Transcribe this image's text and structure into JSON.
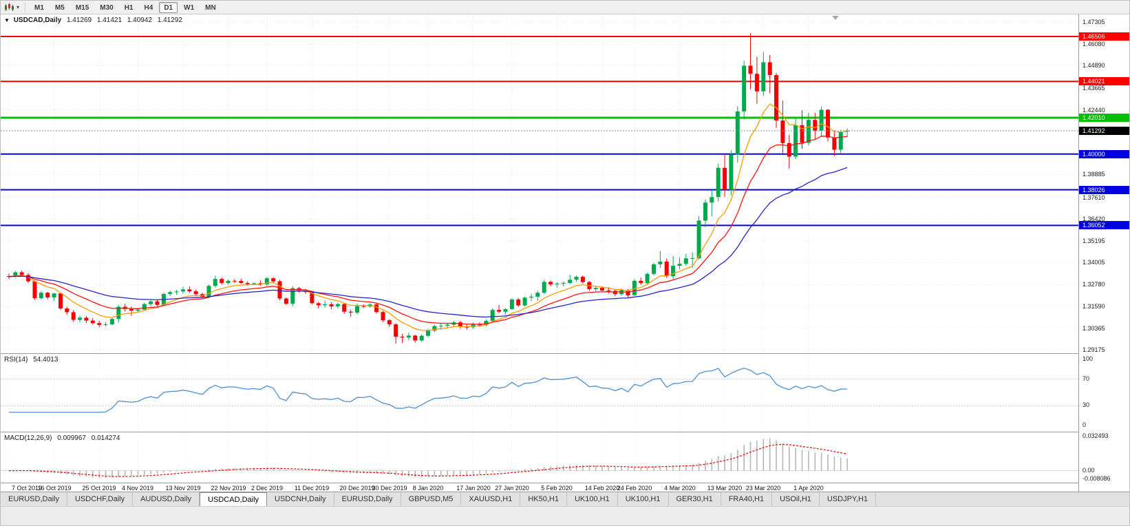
{
  "toolbar": {
    "timeframes": [
      "M1",
      "M5",
      "M15",
      "M30",
      "H1",
      "H4",
      "D1",
      "W1",
      "MN"
    ],
    "active_timeframe": "D1"
  },
  "chart": {
    "header": {
      "symbol": "USDCAD,Daily",
      "open": "1.41269",
      "high": "1.41421",
      "low": "1.40942",
      "close": "1.41292"
    },
    "y_axis_ticks": [
      "1.47305",
      "1.46080",
      "1.44890",
      "1.43665",
      "1.42440",
      "1.38885",
      "1.37610",
      "1.36420",
      "1.35195",
      "1.34005",
      "1.32780",
      "1.31590",
      "1.30365",
      "1.29175"
    ],
    "price_lines": [
      {
        "value": 1.46506,
        "label": "1.46506",
        "color": "#ff0000",
        "width": 2
      },
      {
        "value": 1.44021,
        "label": "1.44021",
        "color": "#ff0000",
        "width": 2
      },
      {
        "value": 1.4201,
        "label": "1.42010",
        "color": "#00c000",
        "width": 3
      },
      {
        "value": 1.4,
        "label": "1.40000",
        "color": "#0000e0",
        "width": 2
      },
      {
        "value": 1.38026,
        "label": "1.38026",
        "color": "#0000e0",
        "width": 2
      },
      {
        "value": 1.36052,
        "label": "1.36052",
        "color": "#0000e0",
        "width": 2
      }
    ],
    "current_price": {
      "value": 1.41292,
      "label": "1.41292"
    }
  },
  "rsi": {
    "label": "RSI(14)",
    "value": "54.4013",
    "period": 14,
    "levels": [
      "100",
      "70",
      "30",
      "0"
    ],
    "color": "#4a8fd3"
  },
  "macd": {
    "label": "MACD(12,26,9)",
    "value1": "0.009967",
    "value2": "0.014274",
    "levels": [
      "0.032493",
      "0.00",
      "-0.008086"
    ],
    "range": [
      -0.008086,
      0.032493
    ],
    "histogram_color": "#b6b6b6",
    "signal_color": "#e00000"
  },
  "tabs": [
    "EURUSD,Daily",
    "USDCHF,Daily",
    "AUDUSD,Daily",
    "USDCAD,Daily",
    "USDCNH,Daily",
    "EURUSD,Daily",
    "GBPUSD,M5",
    "XAUUSD,H1",
    "HK50,H1",
    "UK100,H1",
    "UK100,H1",
    "GER30,H1",
    "FRA40,H1",
    "USOil,H1",
    "USDJPY,H1"
  ],
  "active_tab_index": 3,
  "chart_data": {
    "type": "candlestick",
    "title": "USDCAD,Daily",
    "ylim": [
      1.29175,
      1.47305
    ],
    "x_labels": [
      "7 Oct 2019",
      "16 Oct 2019",
      "25 Oct 2019",
      "4 Nov 2019",
      "13 Nov 2019",
      "22 Nov 2019",
      "2 Dec 2019",
      "11 Dec 2019",
      "20 Dec 2019",
      "30 Dec 2019",
      "8 Jan 2020",
      "17 Jan 2020",
      "27 Jan 2020",
      "5 Feb 2020",
      "14 Feb 2020",
      "24 Feb 2020",
      "4 Mar 2020",
      "13 Mar 2020",
      "23 Mar 2020",
      "1 Apr 2020"
    ],
    "x_label_indices": [
      0,
      7,
      14,
      20,
      27,
      34,
      40,
      47,
      54,
      59,
      65,
      72,
      78,
      85,
      92,
      97,
      104,
      111,
      117,
      124
    ],
    "colors": {
      "bull": "#00a94e",
      "bear": "#f60000"
    },
    "moving_averages": [
      {
        "name": "ma-fast-line",
        "period": 8,
        "color": "#ff9c00"
      },
      {
        "name": "ma-medium-line",
        "period": 16,
        "color": "#ff1010"
      },
      {
        "name": "ma-slow-line",
        "period": 34,
        "color": "#2424cc"
      }
    ],
    "candles": [
      [
        1.3325,
        1.3339,
        1.3308,
        1.3322
      ],
      [
        1.3322,
        1.3353,
        1.3315,
        1.3346
      ],
      [
        1.3346,
        1.3356,
        1.3321,
        1.3331
      ],
      [
        1.3331,
        1.3342,
        1.3287,
        1.3296
      ],
      [
        1.3296,
        1.3302,
        1.3193,
        1.3203
      ],
      [
        1.3203,
        1.3242,
        1.3196,
        1.3233
      ],
      [
        1.3233,
        1.3238,
        1.3196,
        1.3207
      ],
      [
        1.3207,
        1.3232,
        1.3187,
        1.3229
      ],
      [
        1.3229,
        1.3234,
        1.3137,
        1.3146
      ],
      [
        1.3146,
        1.3156,
        1.3111,
        1.3125
      ],
      [
        1.3125,
        1.3136,
        1.3072,
        1.3083
      ],
      [
        1.3083,
        1.3106,
        1.3069,
        1.3095
      ],
      [
        1.3095,
        1.3103,
        1.3066,
        1.3079
      ],
      [
        1.3079,
        1.3093,
        1.3056,
        1.3065
      ],
      [
        1.3065,
        1.3078,
        1.3042,
        1.3055
      ],
      [
        1.3055,
        1.307,
        1.3046,
        1.3058
      ],
      [
        1.3058,
        1.3095,
        1.3052,
        1.3088
      ],
      [
        1.3088,
        1.3166,
        1.3068,
        1.3155
      ],
      [
        1.3155,
        1.3172,
        1.3129,
        1.3143
      ],
      [
        1.3143,
        1.3157,
        1.3105,
        1.3134
      ],
      [
        1.3134,
        1.3148,
        1.3123,
        1.314
      ],
      [
        1.314,
        1.3178,
        1.3134,
        1.317
      ],
      [
        1.317,
        1.3191,
        1.3159,
        1.3185
      ],
      [
        1.3185,
        1.3194,
        1.3158,
        1.3166
      ],
      [
        1.3166,
        1.3233,
        1.3162,
        1.3226
      ],
      [
        1.3226,
        1.3245,
        1.3214,
        1.3236
      ],
      [
        1.3236,
        1.3248,
        1.3221,
        1.324
      ],
      [
        1.324,
        1.3266,
        1.3228,
        1.3251
      ],
      [
        1.3251,
        1.3268,
        1.3233,
        1.3241
      ],
      [
        1.3241,
        1.325,
        1.3213,
        1.3225
      ],
      [
        1.3225,
        1.3234,
        1.3203,
        1.3211
      ],
      [
        1.3211,
        1.3278,
        1.3204,
        1.3271
      ],
      [
        1.3271,
        1.3327,
        1.3261,
        1.3309
      ],
      [
        1.3309,
        1.3317,
        1.3279,
        1.3287
      ],
      [
        1.3287,
        1.3306,
        1.3278,
        1.3299
      ],
      [
        1.3299,
        1.3309,
        1.3287,
        1.3298
      ],
      [
        1.3298,
        1.3311,
        1.3282,
        1.3287
      ],
      [
        1.3287,
        1.3296,
        1.3272,
        1.3281
      ],
      [
        1.3281,
        1.329,
        1.3274,
        1.3285
      ],
      [
        1.3285,
        1.3301,
        1.3272,
        1.3279
      ],
      [
        1.3279,
        1.332,
        1.3271,
        1.3313
      ],
      [
        1.3313,
        1.3319,
        1.3287,
        1.3296
      ],
      [
        1.3296,
        1.3303,
        1.3192,
        1.3201
      ],
      [
        1.3201,
        1.3208,
        1.3165,
        1.3172
      ],
      [
        1.3172,
        1.327,
        1.3158,
        1.3258
      ],
      [
        1.3258,
        1.3265,
        1.3233,
        1.3243
      ],
      [
        1.3243,
        1.3255,
        1.3227,
        1.3237
      ],
      [
        1.3237,
        1.3243,
        1.3167,
        1.3175
      ],
      [
        1.3175,
        1.3183,
        1.3145,
        1.3164
      ],
      [
        1.3164,
        1.319,
        1.3151,
        1.3169
      ],
      [
        1.3169,
        1.318,
        1.3142,
        1.3158
      ],
      [
        1.3158,
        1.3176,
        1.3145,
        1.317
      ],
      [
        1.317,
        1.3178,
        1.3117,
        1.3128
      ],
      [
        1.3128,
        1.3139,
        1.3099,
        1.3123
      ],
      [
        1.3123,
        1.3173,
        1.3113,
        1.3159
      ],
      [
        1.3159,
        1.3168,
        1.3148,
        1.3157
      ],
      [
        1.3157,
        1.3175,
        1.315,
        1.3168
      ],
      [
        1.3168,
        1.3173,
        1.3118,
        1.3126
      ],
      [
        1.3126,
        1.3133,
        1.3071,
        1.3081
      ],
      [
        1.3081,
        1.3087,
        1.3044,
        1.3058
      ],
      [
        1.3058,
        1.3064,
        1.2951,
        1.299
      ],
      [
        1.299,
        1.3006,
        1.2955,
        1.2985
      ],
      [
        1.2985,
        1.3012,
        1.297,
        1.2996
      ],
      [
        1.2996,
        1.3,
        1.2957,
        1.2969
      ],
      [
        1.2969,
        1.3003,
        1.2961,
        1.2995
      ],
      [
        1.2995,
        1.3033,
        1.2987,
        1.3023
      ],
      [
        1.3023,
        1.3056,
        1.3014,
        1.3048
      ],
      [
        1.3048,
        1.3062,
        1.3028,
        1.305
      ],
      [
        1.305,
        1.3063,
        1.3038,
        1.3056
      ],
      [
        1.3056,
        1.3078,
        1.3045,
        1.3069
      ],
      [
        1.3069,
        1.3077,
        1.3034,
        1.3044
      ],
      [
        1.3044,
        1.3056,
        1.3029,
        1.3042
      ],
      [
        1.3042,
        1.3068,
        1.3033,
        1.3058
      ],
      [
        1.3058,
        1.3069,
        1.3044,
        1.3053
      ],
      [
        1.3053,
        1.3085,
        1.3046,
        1.3077
      ],
      [
        1.3077,
        1.3148,
        1.3071,
        1.3138
      ],
      [
        1.3138,
        1.3166,
        1.3119,
        1.3128
      ],
      [
        1.3128,
        1.3148,
        1.3113,
        1.3142
      ],
      [
        1.3142,
        1.3204,
        1.3139,
        1.3196
      ],
      [
        1.3196,
        1.3203,
        1.3154,
        1.3163
      ],
      [
        1.3163,
        1.3211,
        1.3156,
        1.3206
      ],
      [
        1.3206,
        1.3227,
        1.3186,
        1.3211
      ],
      [
        1.3211,
        1.3244,
        1.3188,
        1.3233
      ],
      [
        1.3233,
        1.3304,
        1.3226,
        1.3293
      ],
      [
        1.3293,
        1.3301,
        1.3267,
        1.3279
      ],
      [
        1.3279,
        1.3291,
        1.3261,
        1.3283
      ],
      [
        1.3283,
        1.3295,
        1.3268,
        1.3287
      ],
      [
        1.3287,
        1.3332,
        1.328,
        1.3305
      ],
      [
        1.3305,
        1.3329,
        1.3294,
        1.3321
      ],
      [
        1.3321,
        1.3328,
        1.3283,
        1.3292
      ],
      [
        1.3292,
        1.3298,
        1.3243,
        1.3253
      ],
      [
        1.3253,
        1.327,
        1.324,
        1.326
      ],
      [
        1.326,
        1.3269,
        1.3237,
        1.3245
      ],
      [
        1.3245,
        1.3263,
        1.3229,
        1.3243
      ],
      [
        1.3243,
        1.325,
        1.3214,
        1.3225
      ],
      [
        1.3225,
        1.3256,
        1.3217,
        1.3247
      ],
      [
        1.3247,
        1.3254,
        1.3208,
        1.3219
      ],
      [
        1.3219,
        1.3308,
        1.3216,
        1.3299
      ],
      [
        1.3299,
        1.3317,
        1.3276,
        1.3286
      ],
      [
        1.3286,
        1.3344,
        1.3279,
        1.3337
      ],
      [
        1.3337,
        1.3399,
        1.3328,
        1.339
      ],
      [
        1.339,
        1.3464,
        1.337,
        1.3405
      ],
      [
        1.3405,
        1.3423,
        1.3315,
        1.3324
      ],
      [
        1.3324,
        1.3436,
        1.3309,
        1.3382
      ],
      [
        1.3382,
        1.3429,
        1.3362,
        1.3393
      ],
      [
        1.3393,
        1.3447,
        1.3383,
        1.3423
      ],
      [
        1.3423,
        1.3456,
        1.337,
        1.3424
      ],
      [
        1.3424,
        1.3656,
        1.3417,
        1.3632
      ],
      [
        1.3632,
        1.3749,
        1.3595,
        1.3732
      ],
      [
        1.3732,
        1.3801,
        1.3655,
        1.3762
      ],
      [
        1.3762,
        1.3947,
        1.3737,
        1.3924
      ],
      [
        1.3924,
        1.3995,
        1.3763,
        1.3802
      ],
      [
        1.3802,
        1.402,
        1.3772,
        1.3996
      ],
      [
        1.3996,
        1.4264,
        1.3954,
        1.4236
      ],
      [
        1.4236,
        1.4517,
        1.4192,
        1.4489
      ],
      [
        1.4489,
        1.4668,
        1.4358,
        1.4444
      ],
      [
        1.4444,
        1.4538,
        1.4278,
        1.4347
      ],
      [
        1.4347,
        1.4564,
        1.4322,
        1.4508
      ],
      [
        1.4508,
        1.4548,
        1.4337,
        1.4437
      ],
      [
        1.4437,
        1.4449,
        1.4145,
        1.4186
      ],
      [
        1.4186,
        1.4296,
        1.4006,
        1.4061
      ],
      [
        1.4061,
        1.4106,
        1.392,
        1.3986
      ],
      [
        1.3986,
        1.42,
        1.3973,
        1.416
      ],
      [
        1.416,
        1.4243,
        1.4029,
        1.4062
      ],
      [
        1.4062,
        1.4229,
        1.4048,
        1.4189
      ],
      [
        1.4189,
        1.4228,
        1.4083,
        1.413
      ],
      [
        1.413,
        1.4264,
        1.4097,
        1.4245
      ],
      [
        1.4245,
        1.4249,
        1.4071,
        1.4092
      ],
      [
        1.4092,
        1.413,
        1.3989,
        1.4024
      ],
      [
        1.4024,
        1.4134,
        1.4006,
        1.4121
      ],
      [
        1.41269,
        1.41421,
        1.40942,
        1.41292
      ]
    ]
  }
}
